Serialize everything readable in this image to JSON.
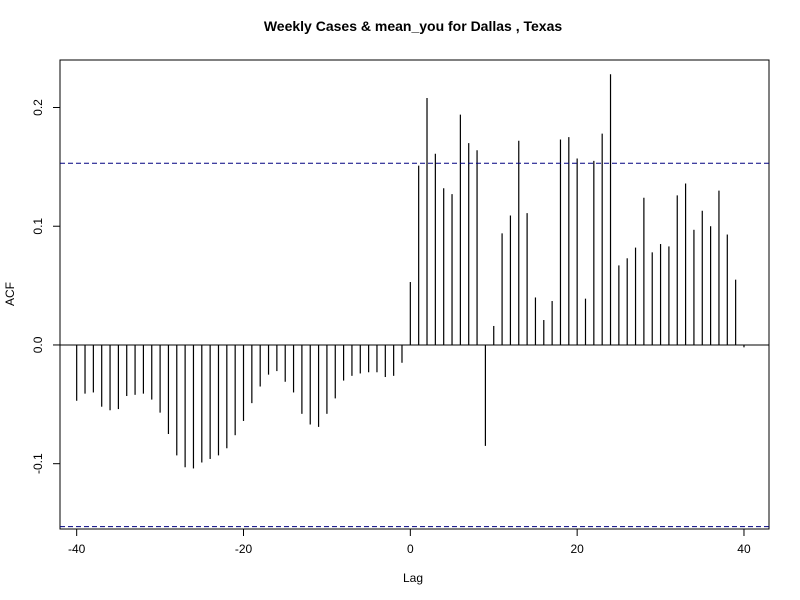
{
  "chart_data": {
    "type": "bar",
    "title": "Weekly Cases & mean_you for Dallas , Texas",
    "xlabel": "Lag",
    "ylabel": "ACF",
    "xlim": [
      -42,
      43
    ],
    "ylim": [
      -0.155,
      0.24
    ],
    "x_ticks": [
      -40,
      -20,
      0,
      20,
      40
    ],
    "x_tick_labels": [
      "-40",
      "-20",
      "0",
      "20",
      "40"
    ],
    "y_ticks": [
      -0.1,
      0.0,
      0.1,
      0.2
    ],
    "y_tick_labels": [
      "-0.1",
      "0.0",
      "0.1",
      "0.2"
    ],
    "confidence_bound": 0.153,
    "confidence_line_color": "#000080",
    "bar_color": "#000000",
    "x": [
      -40,
      -39,
      -38,
      -37,
      -36,
      -35,
      -34,
      -33,
      -32,
      -31,
      -30,
      -29,
      -28,
      -27,
      -26,
      -25,
      -24,
      -23,
      -22,
      -21,
      -20,
      -19,
      -18,
      -17,
      -16,
      -15,
      -14,
      -13,
      -12,
      -11,
      -10,
      -9,
      -8,
      -7,
      -6,
      -5,
      -4,
      -3,
      -2,
      -1,
      0,
      1,
      2,
      3,
      4,
      5,
      6,
      7,
      8,
      9,
      10,
      11,
      12,
      13,
      14,
      15,
      16,
      17,
      18,
      19,
      20,
      21,
      22,
      23,
      24,
      25,
      26,
      27,
      28,
      29,
      30,
      31,
      32,
      33,
      34,
      35,
      36,
      37,
      38,
      39,
      40
    ],
    "values": [
      -0.047,
      -0.041,
      -0.04,
      -0.052,
      -0.055,
      -0.054,
      -0.043,
      -0.042,
      -0.041,
      -0.046,
      -0.057,
      -0.075,
      -0.093,
      -0.103,
      -0.104,
      -0.099,
      -0.096,
      -0.093,
      -0.087,
      -0.076,
      -0.064,
      -0.049,
      -0.035,
      -0.025,
      -0.022,
      -0.031,
      -0.04,
      -0.058,
      -0.067,
      -0.069,
      -0.058,
      -0.045,
      -0.03,
      -0.026,
      -0.024,
      -0.023,
      -0.023,
      -0.027,
      -0.026,
      -0.015,
      0.053,
      0.151,
      0.208,
      0.161,
      0.132,
      0.127,
      0.194,
      0.17,
      0.164,
      -0.085,
      0.016,
      0.094,
      0.109,
      0.172,
      0.111,
      0.04,
      0.021,
      0.037,
      0.173,
      0.175,
      0.157,
      0.039,
      0.155,
      0.178,
      0.228,
      0.067,
      0.073,
      0.082,
      0.124,
      0.078,
      0.085,
      0.083,
      0.126,
      0.136,
      0.097,
      0.113,
      0.1,
      0.13,
      0.093,
      0.055,
      -0.002
    ]
  }
}
